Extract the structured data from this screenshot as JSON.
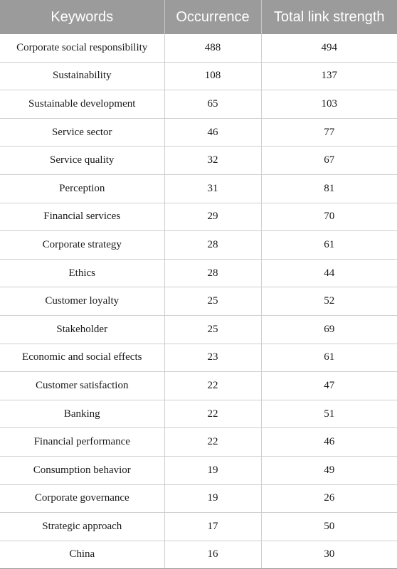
{
  "table": {
    "headers": [
      "Keywords",
      "Occurrence",
      "Total link strength"
    ],
    "rows": [
      [
        "Corporate social responsibility",
        "488",
        "494"
      ],
      [
        "Sustainability",
        "108",
        "137"
      ],
      [
        "Sustainable development",
        "65",
        "103"
      ],
      [
        "Service sector",
        "46",
        "77"
      ],
      [
        "Service quality",
        "32",
        "67"
      ],
      [
        "Perception",
        "31",
        "81"
      ],
      [
        "Financial services",
        "29",
        "70"
      ],
      [
        "Corporate strategy",
        "28",
        "61"
      ],
      [
        "Ethics",
        "28",
        "44"
      ],
      [
        "Customer loyalty",
        "25",
        "52"
      ],
      [
        "Stakeholder",
        "25",
        "69"
      ],
      [
        "Economic and social effects",
        "23",
        "61"
      ],
      [
        "Customer satisfaction",
        "22",
        "47"
      ],
      [
        "Banking",
        "22",
        "51"
      ],
      [
        "Financial performance",
        "22",
        "46"
      ],
      [
        "Consumption behavior",
        "19",
        "49"
      ],
      [
        "Corporate governance",
        "19",
        "26"
      ],
      [
        "Strategic approach",
        "17",
        "50"
      ],
      [
        "China",
        "16",
        "30"
      ]
    ]
  },
  "colors": {
    "header_background": "#9b9b9b",
    "header_text": "#ffffff",
    "row_divider": "#cfcfcf"
  }
}
